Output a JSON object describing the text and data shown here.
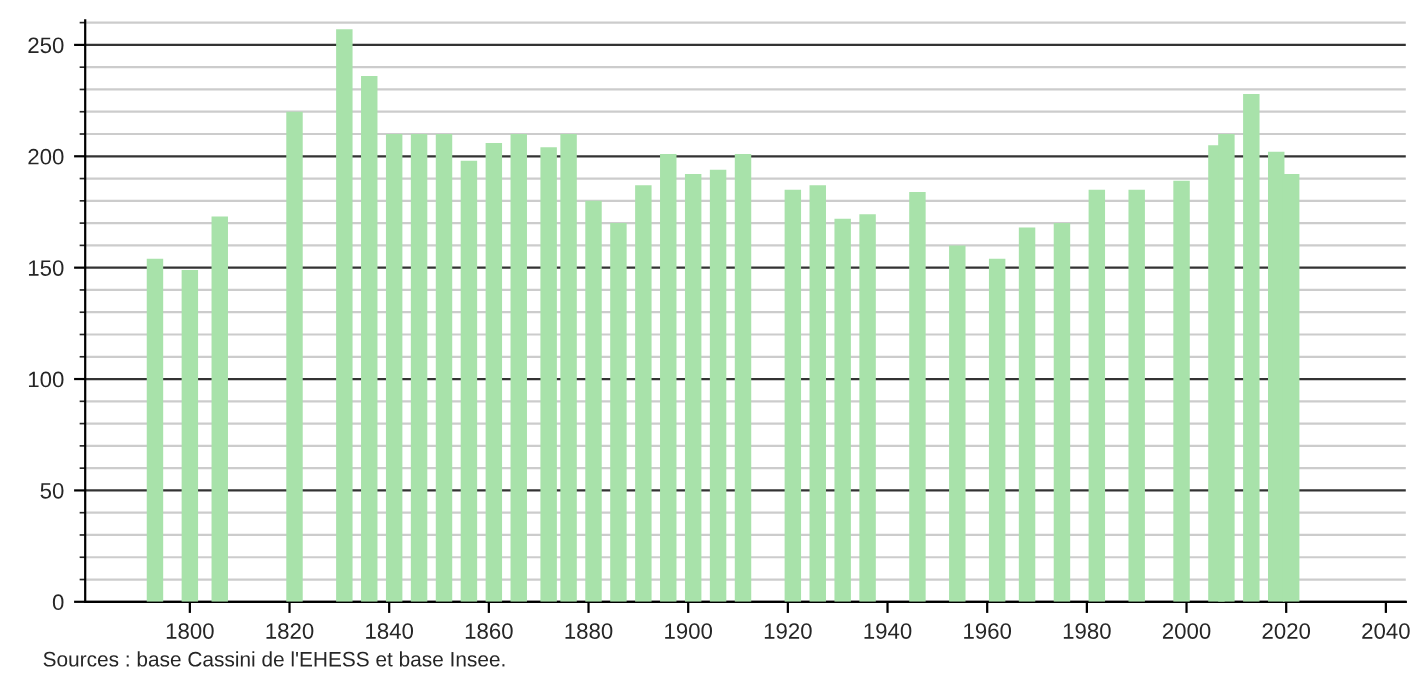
{
  "chart_data": {
    "type": "bar",
    "x": [
      1793,
      1800,
      1806,
      1821,
      1831,
      1836,
      1841,
      1846,
      1851,
      1856,
      1861,
      1866,
      1872,
      1876,
      1881,
      1886,
      1891,
      1896,
      1901,
      1906,
      1911,
      1921,
      1926,
      1931,
      1936,
      1946,
      1954,
      1962,
      1968,
      1975,
      1982,
      1990,
      1999,
      2006,
      2008,
      2013,
      2018,
      2021
    ],
    "values": [
      154,
      149,
      173,
      220,
      257,
      236,
      210,
      210,
      210,
      198,
      206,
      210,
      204,
      210,
      180,
      170,
      187,
      201,
      192,
      194,
      201,
      185,
      187,
      172,
      174,
      184,
      160,
      154,
      168,
      170,
      185,
      185,
      189,
      205,
      210,
      228,
      202,
      192
    ],
    "color": "#a8e2aa",
    "xlim": [
      1779,
      2044
    ],
    "xticks": [
      1800,
      1820,
      1840,
      1860,
      1880,
      1900,
      1920,
      1940,
      1960,
      1980,
      2000,
      2020,
      2040
    ],
    "ylim": [
      0,
      261
    ],
    "yticks": [
      0,
      50,
      100,
      150,
      200,
      250
    ],
    "grid": "y",
    "legend": false,
    "annotations": [
      "Sources : base Cassini de l'EHESS et base Insee."
    ]
  }
}
